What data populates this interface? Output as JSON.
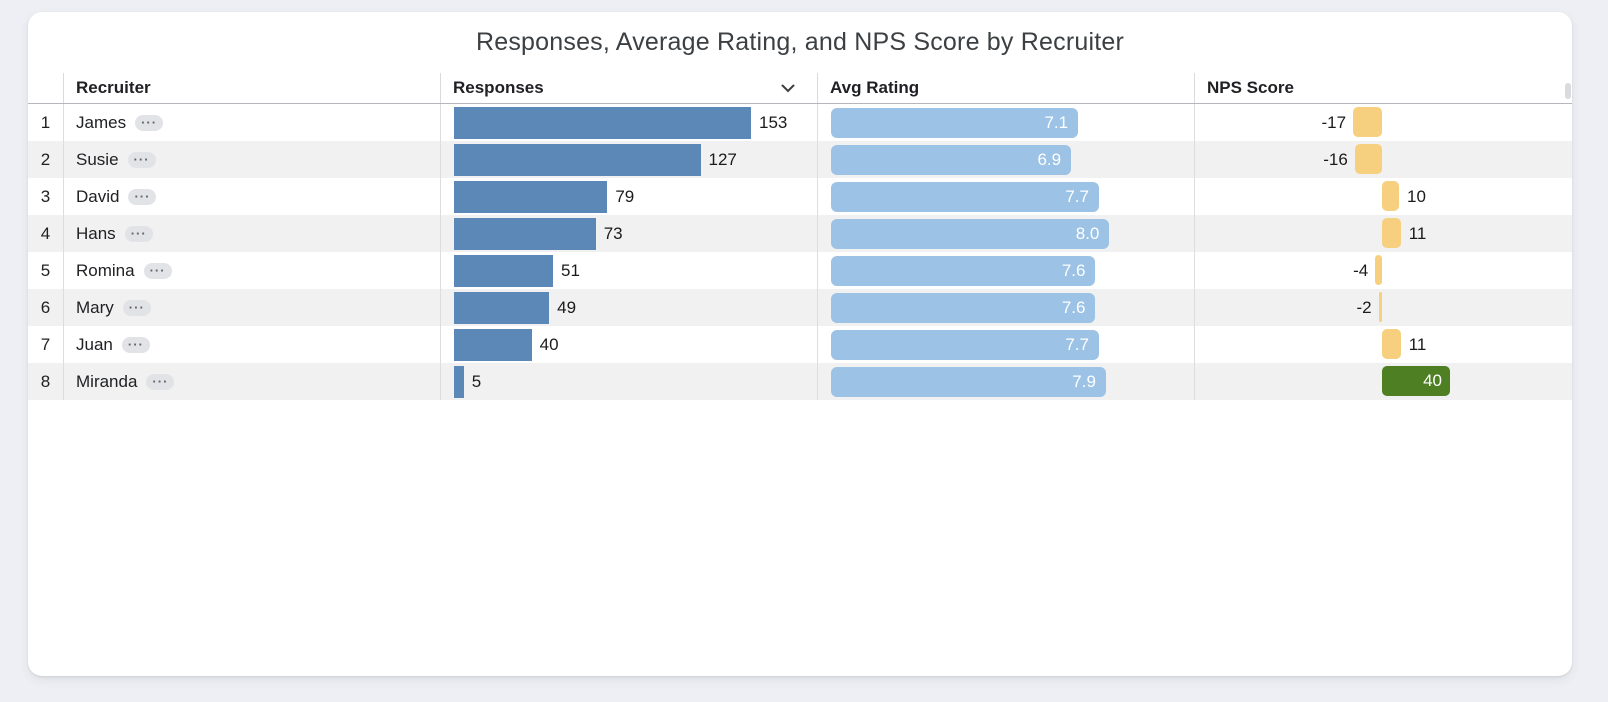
{
  "page": {
    "background": "#edeff4"
  },
  "title": "Responses, Average Rating, and NPS Score by Recruiter",
  "table": {
    "columns": [
      "Recruiter",
      "Responses",
      "Avg Rating",
      "NPS Score"
    ],
    "sort_column": "Responses",
    "sort_direction": "desc",
    "ellipsis_label": "···",
    "rows": [
      {
        "rank": "1",
        "name": "James",
        "responses": 153,
        "responses_label": "153",
        "rating": 7.1,
        "rating_label": "7.1",
        "nps": -17,
        "nps_label": "-17",
        "nps_variant": "neutral"
      },
      {
        "rank": "2",
        "name": "Susie",
        "responses": 127,
        "responses_label": "127",
        "rating": 6.9,
        "rating_label": "6.9",
        "nps": -16,
        "nps_label": "-16",
        "nps_variant": "neutral"
      },
      {
        "rank": "3",
        "name": "David",
        "responses": 79,
        "responses_label": "79",
        "rating": 7.7,
        "rating_label": "7.7",
        "nps": 10,
        "nps_label": "10",
        "nps_variant": "neutral"
      },
      {
        "rank": "4",
        "name": "Hans",
        "responses": 73,
        "responses_label": "73",
        "rating": 8.0,
        "rating_label": "8.0",
        "nps": 11,
        "nps_label": "11",
        "nps_variant": "neutral"
      },
      {
        "rank": "5",
        "name": "Romina",
        "responses": 51,
        "responses_label": "51",
        "rating": 7.6,
        "rating_label": "7.6",
        "nps": -4,
        "nps_label": "-4",
        "nps_variant": "neutral"
      },
      {
        "rank": "6",
        "name": "Mary",
        "responses": 49,
        "responses_label": "49",
        "rating": 7.6,
        "rating_label": "7.6",
        "nps": -2,
        "nps_label": "-2",
        "nps_variant": "neutral"
      },
      {
        "rank": "7",
        "name": "Juan",
        "responses": 40,
        "responses_label": "40",
        "rating": 7.7,
        "rating_label": "7.7",
        "nps": 11,
        "nps_label": "11",
        "nps_variant": "neutral"
      },
      {
        "rank": "8",
        "name": "Miranda",
        "responses": 5,
        "responses_label": "5",
        "rating": 7.9,
        "rating_label": "7.9",
        "nps": 40,
        "nps_label": "40",
        "nps_variant": "positive"
      }
    ]
  },
  "colors": {
    "responses_bar": "#5b88b7",
    "rating_bar": "#9cc3e5",
    "nps_bar_neutral": "#f6d07e",
    "nps_bar_positive": "#4e8023"
  },
  "chart_data": {
    "type": "table",
    "title": "Responses, Average Rating, and NPS Score by Recruiter",
    "columns": [
      "Recruiter",
      "Responses",
      "Avg Rating",
      "NPS Score"
    ],
    "sort": {
      "column": "Responses",
      "direction": "desc"
    },
    "categories": [
      "James",
      "Susie",
      "David",
      "Hans",
      "Romina",
      "Mary",
      "Juan",
      "Miranda"
    ],
    "series": [
      {
        "name": "Responses",
        "type": "bar",
        "values": [
          153,
          127,
          79,
          73,
          51,
          49,
          40,
          5
        ]
      },
      {
        "name": "Avg Rating",
        "type": "bar",
        "values": [
          7.1,
          6.9,
          7.7,
          8.0,
          7.6,
          7.6,
          7.7,
          7.9
        ]
      },
      {
        "name": "NPS Score",
        "type": "bar",
        "values": [
          -17,
          -16,
          10,
          11,
          -4,
          -2,
          11,
          40
        ]
      }
    ],
    "notes": "NPS bars diverge around a zero baseline; NPS of 40 highlighted green, others yellow. Avg Rating labels shown inside bars, Responses labels to the right of bars."
  }
}
